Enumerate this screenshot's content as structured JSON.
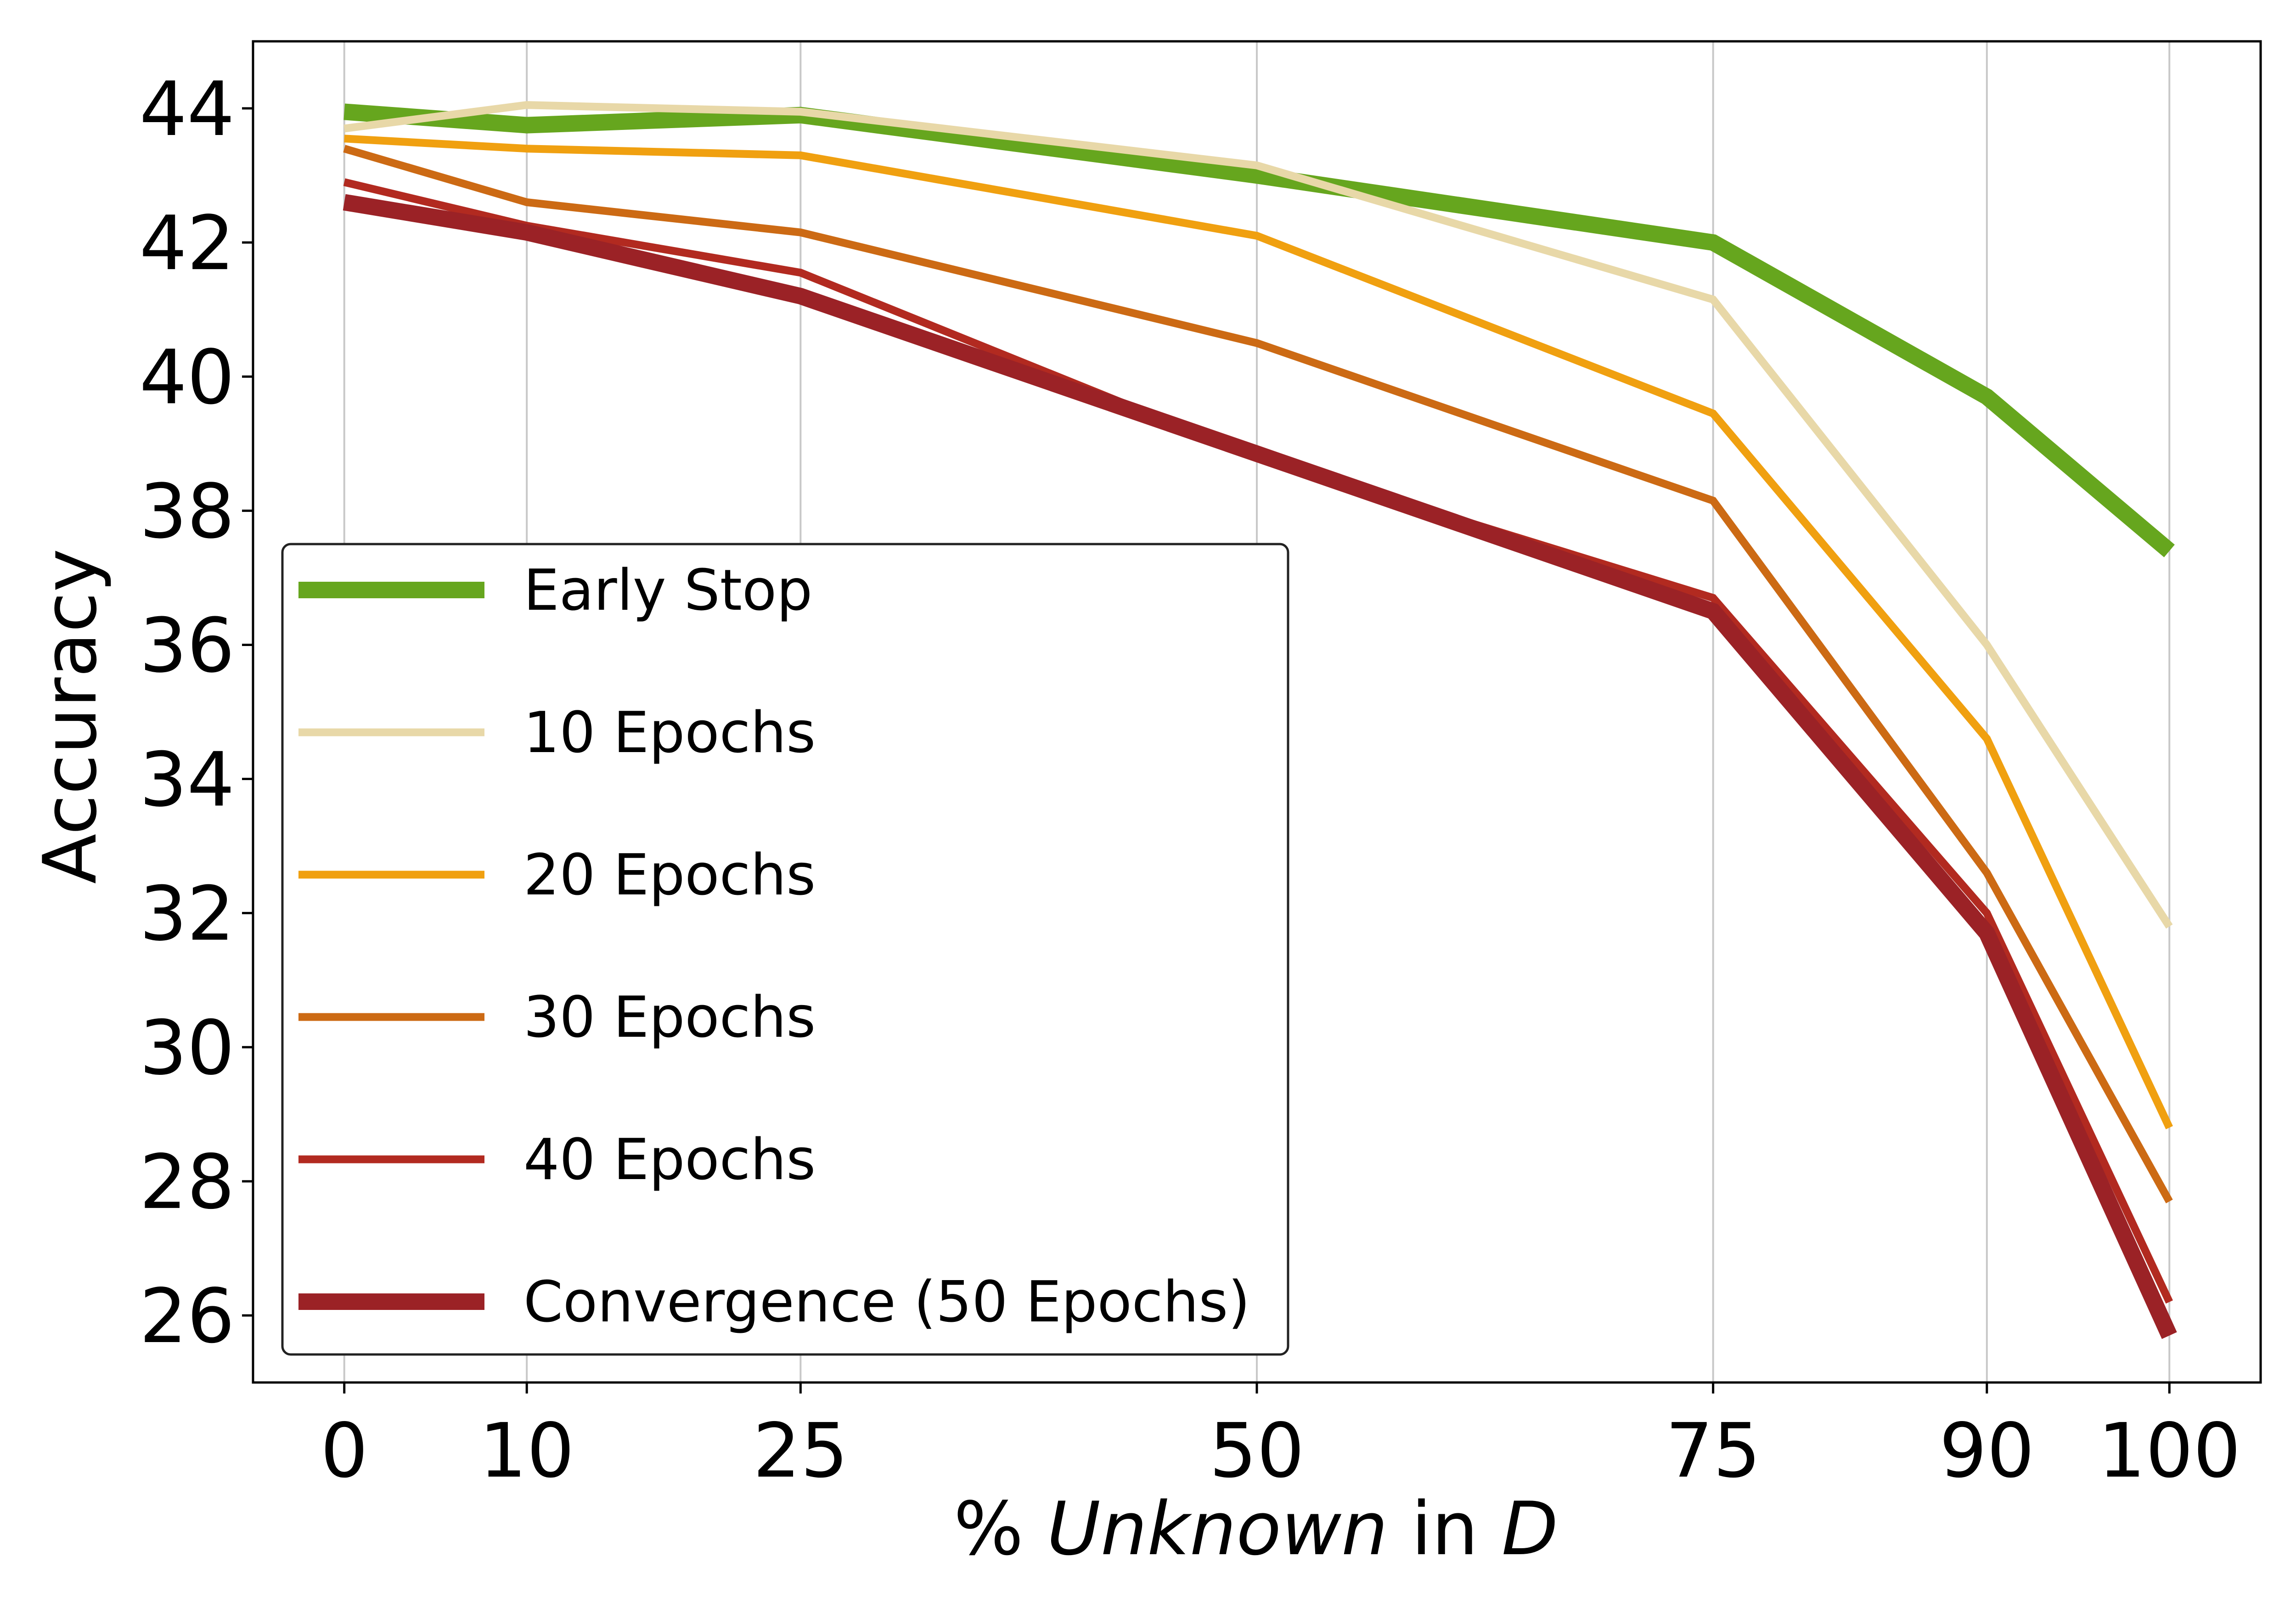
{
  "chart_data": {
    "type": "line",
    "title": "",
    "xlabel": {
      "prefix": "% ",
      "italic": "Unknown",
      "middle": " in ",
      "italic2": "D"
    },
    "ylabel": "Accuracy",
    "x": [
      0,
      10,
      25,
      50,
      75,
      90,
      100
    ],
    "x_tick_labels": [
      "0",
      "10",
      "25",
      "50",
      "75",
      "90",
      "100"
    ],
    "xlim": [
      -5,
      105
    ],
    "y_ticks": [
      26,
      28,
      30,
      32,
      34,
      36,
      38,
      40,
      42,
      44
    ],
    "y_tick_labels": [
      "26",
      "28",
      "30",
      "32",
      "34",
      "36",
      "38",
      "40",
      "42",
      "44"
    ],
    "ylim": [
      25.0,
      45.0
    ],
    "grid": "vertical",
    "legend_position": "lower-left",
    "series": [
      {
        "name": "Early Stop",
        "color": "#66a61e",
        "width": "heavy",
        "x": [
          0,
          10,
          25,
          50,
          75,
          90,
          100
        ],
        "values": [
          43.95,
          43.75,
          43.9,
          43.0,
          42.0,
          39.7,
          37.4
        ]
      },
      {
        "name": "10 Epochs",
        "color": "#e8d8a8",
        "width": "medium",
        "x": [
          0,
          10,
          25,
          50,
          75,
          90,
          100
        ],
        "values": [
          43.7,
          44.05,
          43.95,
          43.15,
          41.15,
          36.0,
          31.8
        ]
      },
      {
        "name": "20 Epochs",
        "color": "#f0a010",
        "width": "medium",
        "x": [
          0,
          10,
          25,
          50,
          75,
          90,
          100
        ],
        "values": [
          43.55,
          43.4,
          43.3,
          42.1,
          39.45,
          34.6,
          28.8
        ]
      },
      {
        "name": "30 Epochs",
        "color": "#cc6a14",
        "width": "medium",
        "x": [
          0,
          10,
          25,
          50,
          75,
          90,
          100
        ],
        "values": [
          43.4,
          42.6,
          42.15,
          40.5,
          38.15,
          32.6,
          27.7
        ]
      },
      {
        "name": "40 Epochs",
        "color": "#b22a20",
        "width": "medium",
        "x": [
          0,
          10,
          25,
          50,
          75,
          90,
          100
        ],
        "values": [
          42.9,
          42.25,
          41.55,
          38.8,
          36.7,
          32.0,
          26.2
        ]
      },
      {
        "name": "Convergence (50 Epochs)",
        "color": "#9b2226",
        "width": "heavy",
        "x": [
          0,
          10,
          25,
          50,
          75,
          90,
          100
        ],
        "values": [
          42.6,
          42.15,
          41.2,
          38.85,
          36.5,
          31.7,
          25.7
        ]
      }
    ]
  }
}
